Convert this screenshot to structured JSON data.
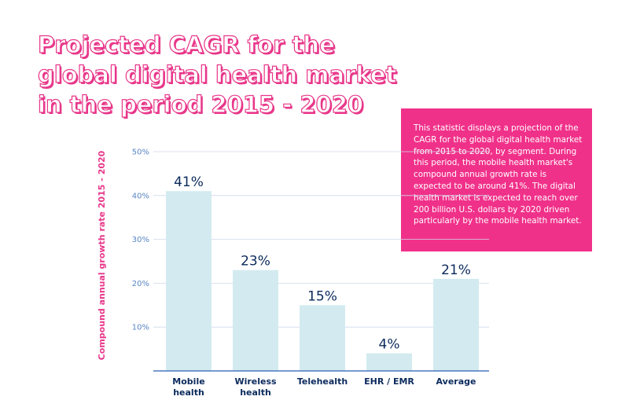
{
  "title_lines": [
    "Projected CAGR for the",
    "global digital health market",
    "in the period 2015 - 2020"
  ],
  "note": "This statistic displays a projection of the CAGR for the global digital health market from 2015 to 2020, by segment. During this period, the mobile health market's compound annual growth rate is expected to be around 41%. The digital health market is expected to reach over 200 billion U.S. dollars by 2020 driven particularly by the mobile health market.",
  "colors": {
    "accent": "#f0318a",
    "bar": "#d3ebf0",
    "axis": "#4a78bf",
    "grid": "#cfd9ec",
    "text_dark": "#0b2a5c"
  },
  "chart_data": {
    "type": "bar",
    "title": "Projected CAGR for the global digital health market in the period 2015 - 2020",
    "ylabel": "Compound annual growth rate 2015 - 2020",
    "xlabel": "",
    "ylim": [
      0,
      50
    ],
    "yticks": [
      10,
      20,
      30,
      40,
      50
    ],
    "ytick_labels": [
      "10%",
      "20%",
      "30%",
      "40%",
      "50%"
    ],
    "grid": true,
    "categories": [
      [
        "Mobile",
        "health"
      ],
      [
        "Wireless",
        "health"
      ],
      [
        "Telehealth"
      ],
      [
        "EHR / EMR"
      ],
      [
        "Average"
      ]
    ],
    "values": [
      41,
      23,
      15,
      4,
      21
    ],
    "data_labels": [
      "41%",
      "23%",
      "15%",
      "4%",
      "21%"
    ]
  }
}
